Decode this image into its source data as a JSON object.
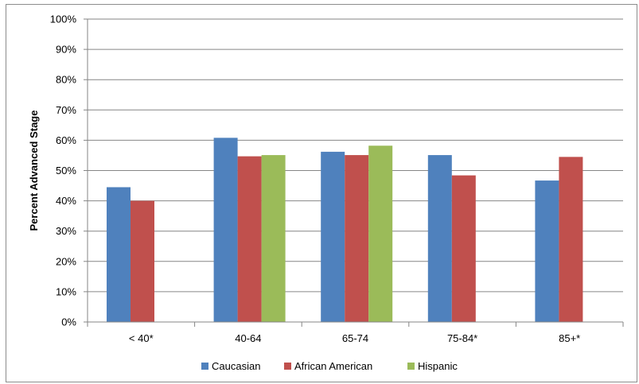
{
  "chart_data": {
    "type": "bar",
    "ylabel": "Percent Advanced Stage",
    "xlabel": "",
    "title": "",
    "ylim": [
      0,
      100
    ],
    "y_ticks": [
      "0%",
      "10%",
      "20%",
      "30%",
      "40%",
      "50%",
      "60%",
      "70%",
      "80%",
      "90%",
      "100%"
    ],
    "grid": true,
    "legend_position": "bottom",
    "categories": [
      "< 40*",
      "40-64",
      "65-74",
      "75-84*",
      "85+*"
    ],
    "series": [
      {
        "name": "Caucasian",
        "color": "#4f81bd",
        "values": [
          44.5,
          60.8,
          56.2,
          55.1,
          46.7
        ]
      },
      {
        "name": "African American",
        "color": "#c0504d",
        "values": [
          40.0,
          54.7,
          55.1,
          48.4,
          54.5
        ]
      },
      {
        "name": "Hispanic",
        "color": "#9bbb59",
        "values": [
          null,
          55.1,
          58.2,
          null,
          null
        ]
      }
    ]
  }
}
